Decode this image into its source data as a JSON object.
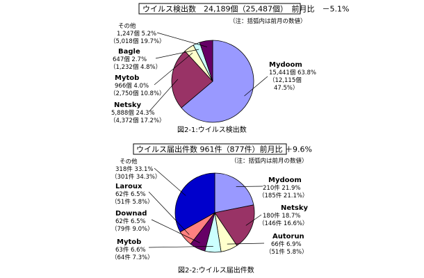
{
  "chart_data": [
    {
      "type": "pie",
      "title": "ウイルス検出数　24,189個（25,487個）　前月比　－5.1%",
      "note": "（注：括弧内は前月の数値）",
      "caption": "図2-1:ウイルス検出数",
      "slices": [
        {
          "name": "Mydoom",
          "value": 15441,
          "percent": 63.8,
          "line1": "15,441個 63.8%",
          "line2": "（12,115個",
          "line3": "47.5%）",
          "color": "#9999ff"
        },
        {
          "name": "Netsky",
          "value": 5888,
          "percent": 24.3,
          "line1": "5,888個 24.3%",
          "line2": "（4,372個 17.2%）",
          "line3": "",
          "color": "#993366"
        },
        {
          "name": "Mytob",
          "value": 966,
          "percent": 4.0,
          "line1": "966個 4.0%",
          "line2": "（2,750個 10.8%）",
          "line3": "",
          "color": "#ffffcc"
        },
        {
          "name": "Bagle",
          "value": 647,
          "percent": 2.7,
          "line1": "647個 2.7%",
          "line2": "（1,232個 4.8%）",
          "line3": "",
          "color": "#ccffff"
        },
        {
          "name": "その他",
          "value": 1247,
          "percent": 5.2,
          "line1": "1,247個 5.2%",
          "line2": "（5,018個 19.7%）",
          "line3": "",
          "color": "#660066"
        }
      ]
    },
    {
      "type": "pie",
      "title": "ウイルス届出件数 961件（877件）前月比 ＋9.6%",
      "note": "（注：括弧内は前月の数値）",
      "caption": "図2-2:ウイルス届出件数",
      "slices": [
        {
          "name": "Mydoom",
          "value": 210,
          "percent": 21.9,
          "line1": "210件 21.9%",
          "line2": "（185件 21.1%）",
          "color": "#9999ff"
        },
        {
          "name": "Netsky",
          "value": 180,
          "percent": 18.7,
          "line1": "180件 18.7%",
          "line2": "（146件 16.6%）",
          "color": "#993366"
        },
        {
          "name": "Autorun",
          "value": 66,
          "percent": 6.9,
          "line1": "66件 6.9%",
          "line2": "（51件 5.8%）",
          "color": "#ffffcc"
        },
        {
          "name": "Mytob",
          "value": 63,
          "percent": 6.6,
          "line1": "63件 6.6%",
          "line2": "（64件 7.3%）",
          "color": "#ccffff"
        },
        {
          "name": "Downad",
          "value": 62,
          "percent": 6.5,
          "line1": "62件 6.5%",
          "line2": "（79件 9.0%）",
          "color": "#660066"
        },
        {
          "name": "Laroux",
          "value": 62,
          "percent": 6.5,
          "line1": "62件 6.5%",
          "line2": "（51件 5.8%）",
          "color": "#ff8080"
        },
        {
          "name": "その他",
          "value": 318,
          "percent": 33.1,
          "line1": "318件 33.1%",
          "line2": "（301件 34.3%）",
          "color": "#0000cc"
        }
      ]
    }
  ]
}
